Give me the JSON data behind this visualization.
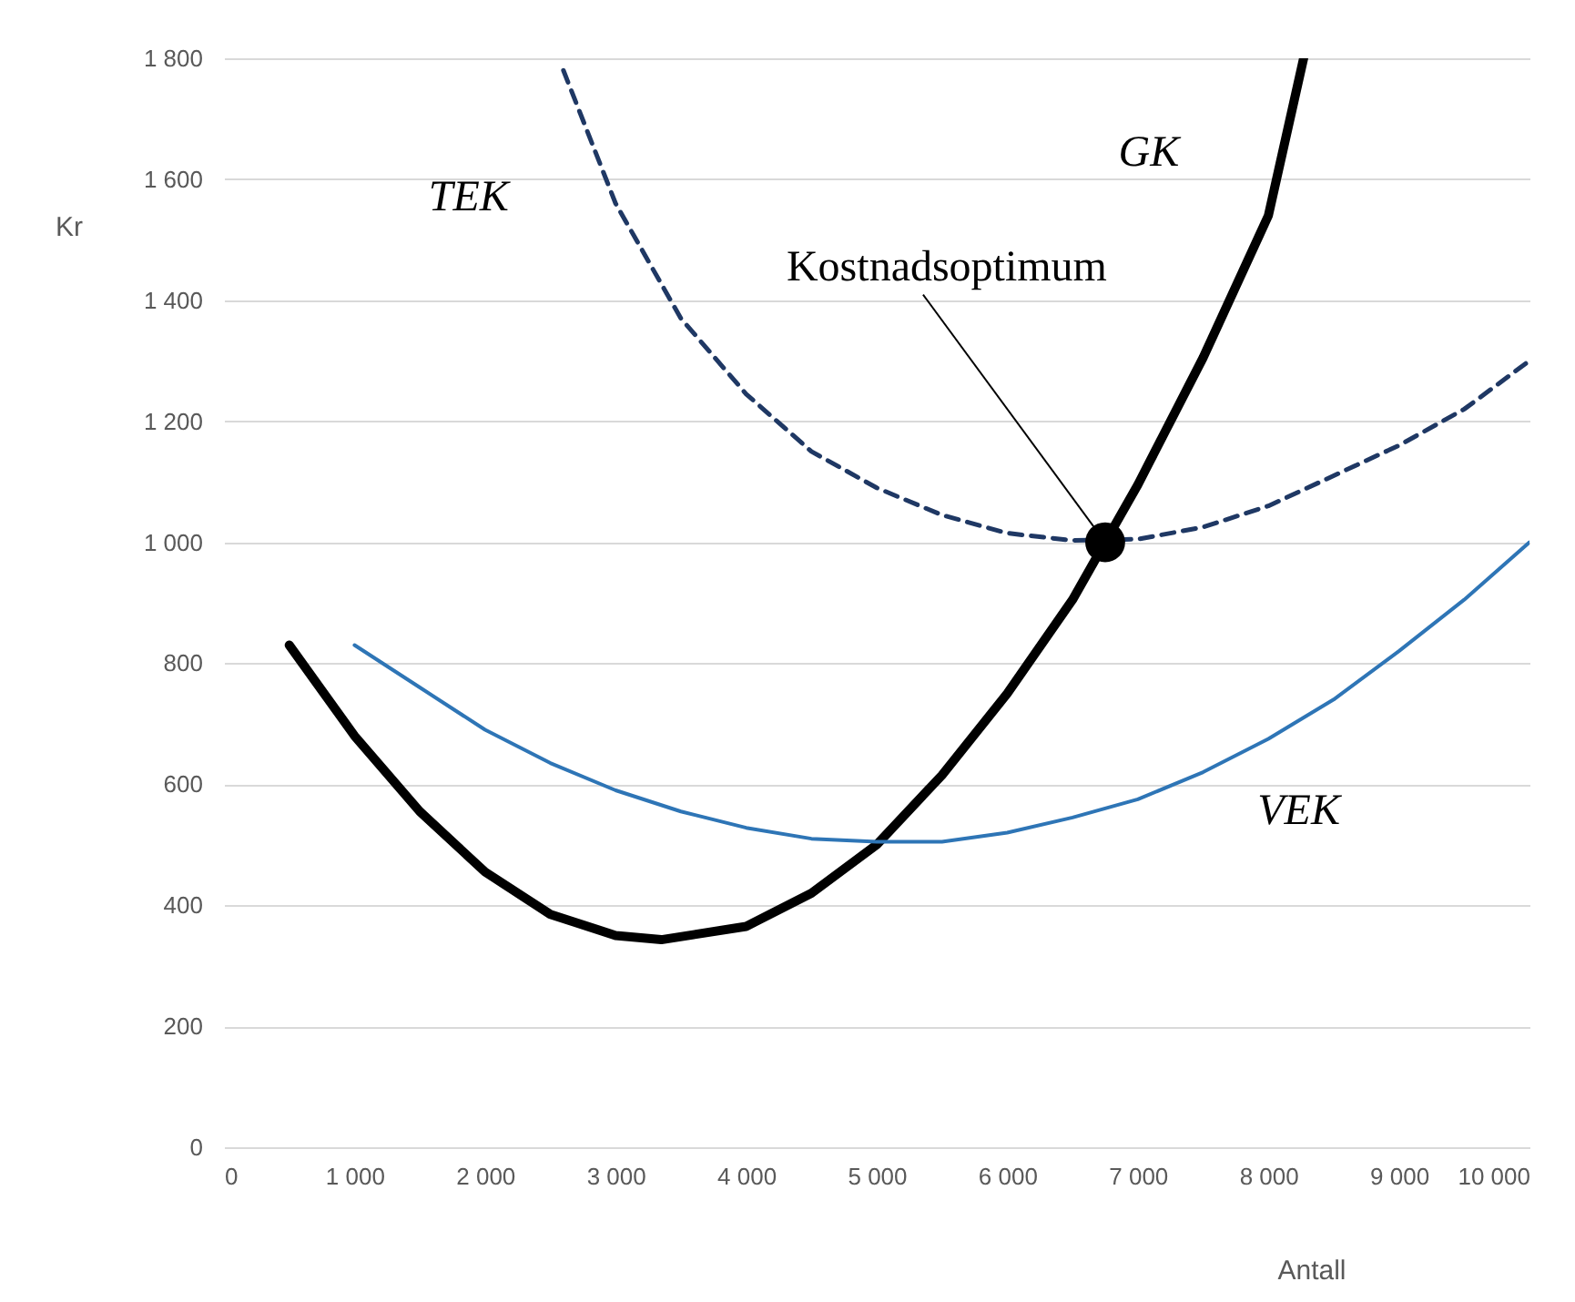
{
  "chart_data": {
    "type": "line",
    "xlabel": "Antall",
    "ylabel": "Kr",
    "xlim": [
      0,
      10000
    ],
    "xticks": [
      0,
      {
        "value": 1000,
        "label": "1 000"
      },
      {
        "value": 2000,
        "label": "2 000"
      },
      {
        "value": 3000,
        "label": "3 000"
      },
      {
        "value": 4000,
        "label": "4 000"
      },
      {
        "value": 5000,
        "label": "5 000"
      },
      {
        "value": 6000,
        "label": "6 000"
      },
      {
        "value": 7000,
        "label": "7 000"
      },
      {
        "value": 8000,
        "label": "8 000"
      },
      {
        "value": 9000,
        "label": "9 000"
      },
      {
        "value": 10000,
        "label": "10 000"
      }
    ],
    "ylim": [
      0,
      1800
    ],
    "yticks": [
      0,
      200,
      400,
      600,
      800,
      {
        "value": 1000,
        "label": "1 000"
      },
      {
        "value": 1200,
        "label": "1 200"
      },
      {
        "value": 1400,
        "label": "1 400"
      },
      {
        "value": 1600,
        "label": "1 600"
      },
      {
        "value": 1800,
        "label": "1 800"
      }
    ],
    "grid": "y",
    "legend": false,
    "series": [
      {
        "name": "TEK",
        "color": "#1f3864",
        "line_style": "dashed",
        "x": [
          2600,
          3000,
          3500,
          4000,
          4500,
          5000,
          5500,
          6000,
          6500,
          7000,
          7500,
          8000,
          8500,
          9000,
          9500,
          10000
        ],
        "values": [
          1780,
          1560,
          1370,
          1245,
          1150,
          1090,
          1045,
          1015,
          1003,
          1005,
          1025,
          1060,
          1110,
          1160,
          1220,
          1300
        ]
      },
      {
        "name": "GK",
        "color": "#000000",
        "line_style": "solid",
        "x": [
          500,
          1000,
          1500,
          2000,
          2500,
          3000,
          3350,
          4000,
          4500,
          5000,
          5500,
          6000,
          6500,
          6750,
          7000,
          7500,
          8000,
          8270
        ],
        "values": [
          830,
          680,
          555,
          455,
          385,
          350,
          343,
          365,
          420,
          500,
          615,
          750,
          905,
          1000,
          1095,
          1305,
          1540,
          1800
        ]
      },
      {
        "name": "VEK",
        "color": "#2e75b6",
        "line_style": "solid",
        "x": [
          1000,
          1500,
          2000,
          2500,
          3000,
          3500,
          4000,
          4500,
          5000,
          5500,
          6000,
          6500,
          7000,
          7500,
          8000,
          8500,
          9000,
          9500,
          10000
        ],
        "values": [
          830,
          760,
          690,
          635,
          590,
          555,
          528,
          510,
          505,
          505,
          520,
          545,
          575,
          620,
          675,
          740,
          820,
          905,
          1000
        ]
      },
      {
        "type": "scatter",
        "color": "#000000",
        "marker": "circle",
        "x": [
          6750
        ],
        "values": [
          1000
        ]
      }
    ],
    "annotations": [
      {
        "text": "Kostnadsoptimum",
        "x": 6750,
        "y": 1000
      }
    ]
  }
}
